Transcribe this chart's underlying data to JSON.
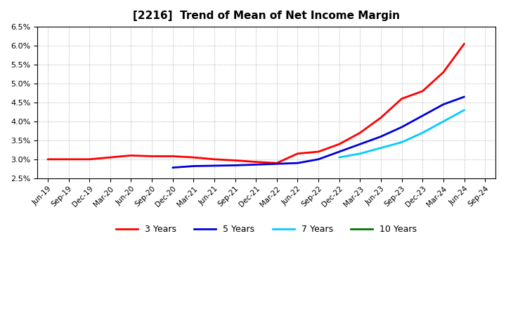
{
  "title": "[2216]  Trend of Mean of Net Income Margin",
  "background_color": "#ffffff",
  "grid_color": "#aaaaaa",
  "plot_bg_color": "#ffffff",
  "x_labels": [
    "Jun-19",
    "Sep-19",
    "Dec-19",
    "Mar-20",
    "Jun-20",
    "Sep-20",
    "Dec-20",
    "Mar-21",
    "Jun-21",
    "Sep-21",
    "Dec-21",
    "Mar-22",
    "Jun-22",
    "Sep-22",
    "Dec-22",
    "Mar-23",
    "Jun-23",
    "Sep-23",
    "Dec-23",
    "Mar-24",
    "Jun-24",
    "Sep-24"
  ],
  "ylim": [
    0.025,
    0.065
  ],
  "yticks": [
    0.025,
    0.03,
    0.035,
    0.04,
    0.045,
    0.05,
    0.055,
    0.06,
    0.065
  ],
  "series": {
    "3 Years": {
      "color": "#ff0000",
      "values": [
        0.03,
        0.03,
        0.03,
        0.0305,
        0.031,
        0.0308,
        0.0308,
        0.0305,
        0.03,
        0.0297,
        0.0293,
        0.029,
        0.0315,
        0.032,
        0.034,
        0.037,
        0.041,
        0.046,
        0.048,
        0.053,
        0.0605,
        null
      ]
    },
    "5 Years": {
      "color": "#0000dd",
      "values": [
        null,
        null,
        null,
        null,
        null,
        null,
        0.0278,
        0.0282,
        0.0283,
        0.0284,
        0.0286,
        0.0288,
        0.029,
        0.03,
        0.032,
        0.034,
        0.036,
        0.0385,
        0.0415,
        0.0445,
        0.0465,
        null
      ]
    },
    "7 Years": {
      "color": "#00ccff",
      "values": [
        null,
        null,
        null,
        null,
        null,
        null,
        null,
        null,
        null,
        null,
        null,
        null,
        null,
        null,
        0.0305,
        0.0315,
        0.033,
        0.0345,
        0.037,
        0.04,
        0.043,
        null
      ]
    },
    "10 Years": {
      "color": "#007700",
      "values": [
        null,
        null,
        null,
        null,
        null,
        null,
        null,
        null,
        null,
        null,
        null,
        null,
        null,
        null,
        null,
        null,
        null,
        null,
        null,
        null,
        null,
        null
      ]
    }
  },
  "legend": [
    "3 Years",
    "5 Years",
    "7 Years",
    "10 Years"
  ],
  "legend_colors": [
    "#ff0000",
    "#0000dd",
    "#00ccff",
    "#007700"
  ]
}
